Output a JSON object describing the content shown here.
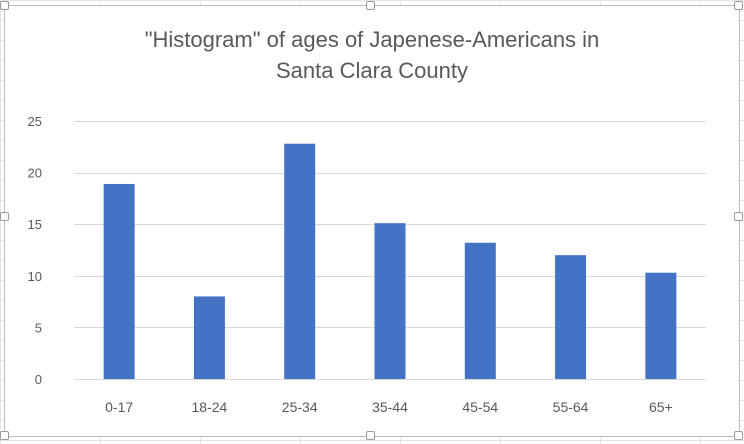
{
  "chart_data": {
    "type": "bar",
    "title_lines": [
      "\"Histogram\" of ages of Japenese-Americans in",
      "Santa Clara County"
    ],
    "categories": [
      "0-17",
      "18-24",
      "25-34",
      "35-44",
      "45-54",
      "55-64",
      "65+"
    ],
    "values": [
      18.9,
      8.0,
      22.8,
      15.1,
      13.2,
      12.0,
      10.3
    ],
    "xlabel": "",
    "ylabel": "",
    "ylim": [
      0,
      25
    ],
    "yticks": [
      0,
      5,
      10,
      15,
      20,
      25
    ],
    "grid": true,
    "legend": "none",
    "bar_color": "#4472c4",
    "grid_color": "#d9d9d9",
    "text_color": "#595959"
  }
}
